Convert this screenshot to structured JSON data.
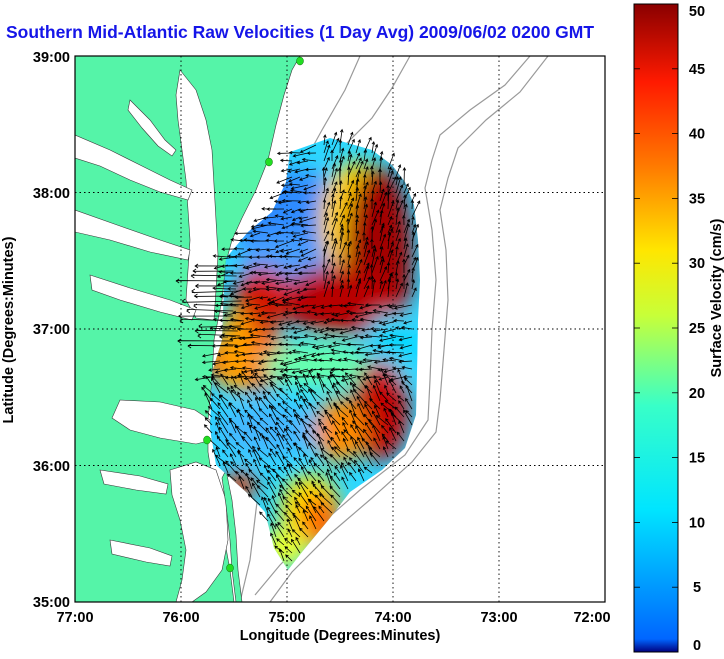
{
  "title": "Southern Mid-Atlantic Raw Velocities (1 Day Avg) 2009/06/02 0200 GMT",
  "x_axis": {
    "label": "Longitude (Degrees:Minutes)",
    "ticks": [
      "77:00",
      "76:00",
      "75:00",
      "74:00",
      "73:00",
      "72:00"
    ]
  },
  "y_axis": {
    "label": "Latitude (Degrees:Minutes)",
    "ticks": [
      "39:00",
      "38:00",
      "37:00",
      "36:00",
      "35:00"
    ]
  },
  "colorbar": {
    "label": "Surface Velocity (cm/s)",
    "ticks": [
      "0",
      "5",
      "10",
      "15",
      "20",
      "25",
      "30",
      "35",
      "40",
      "45",
      "50"
    ],
    "min": 0,
    "max": 50,
    "colormap": "jet"
  },
  "map": {
    "lon_range": [
      -77,
      -72
    ],
    "lat_range": [
      35,
      39
    ],
    "grid": true,
    "land_color": "#55f4a8",
    "water_color": "#ffffff",
    "bathymetry_color": "#9a9a9a",
    "vector_color": "#000000",
    "site_marker_color": "#22dd22"
  },
  "chart_data": {
    "type": "heatmap",
    "title": "Southern Mid-Atlantic Raw Velocities (1 Day Avg) 2009/06/02 0200 GMT",
    "xlabel": "Longitude (Degrees:Minutes)",
    "ylabel": "Latitude (Degrees:Minutes)",
    "xlim": [
      -77,
      -72
    ],
    "ylim": [
      35,
      39
    ],
    "zlabel": "Surface Velocity (cm/s)",
    "zlim": [
      0,
      50
    ],
    "regions": [
      {
        "lon": -74.9,
        "lat": 37.8,
        "speed": 8
      },
      {
        "lon": -75.1,
        "lat": 37.6,
        "speed": 9
      },
      {
        "lon": -74.2,
        "lat": 37.4,
        "speed": 45
      },
      {
        "lon": -74.6,
        "lat": 37.1,
        "speed": 44
      },
      {
        "lon": -75.45,
        "lat": 36.6,
        "speed": 42
      },
      {
        "lon": -74.6,
        "lat": 36.8,
        "speed": 20
      },
      {
        "lon": -74.1,
        "lat": 36.9,
        "speed": 12
      },
      {
        "lon": -75.2,
        "lat": 36.3,
        "speed": 10
      },
      {
        "lon": -74.3,
        "lat": 36.0,
        "speed": 42
      },
      {
        "lon": -75.6,
        "lat": 35.9,
        "speed": 40
      },
      {
        "lon": -74.9,
        "lat": 35.6,
        "speed": 24
      }
    ],
    "vectors": "raw surface current vectors over the coverage area"
  }
}
